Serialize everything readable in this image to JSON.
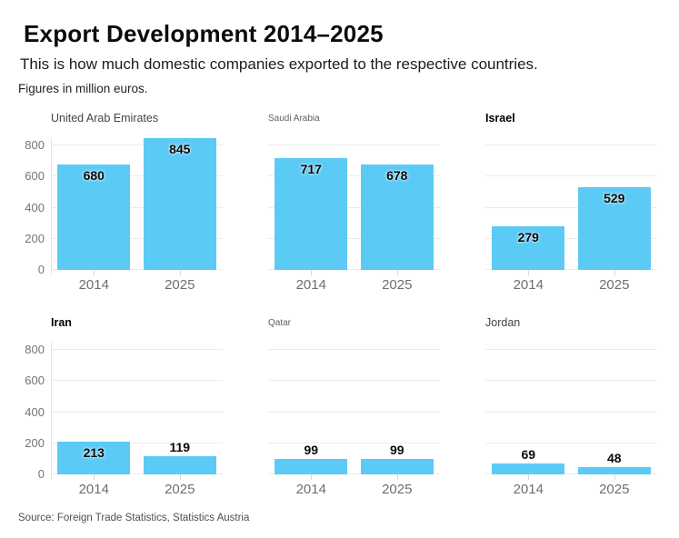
{
  "header": {
    "title": "Export Development 2014–2025",
    "subtitle": "This is how much domestic companies exported to the respective countries.",
    "note": "Figures in million euros."
  },
  "footer": {
    "source": "Source: Foreign Trade Statistics, Statistics Austria"
  },
  "chart_data": {
    "type": "bar",
    "layout": "small-multiples-2x3",
    "categories": [
      "2014",
      "2025"
    ],
    "unit": "million euros",
    "ylim": [
      0,
      800
    ],
    "yticks": [
      0,
      200,
      400,
      600,
      800
    ],
    "grid": "horizontal",
    "bar_color": "#5BCBF5",
    "charts": [
      {
        "title": "United Arab Emirates",
        "values": [
          680,
          845
        ],
        "title_style": "regular"
      },
      {
        "title": "Saudi Arabia",
        "values": [
          717,
          678
        ],
        "title_style": "small"
      },
      {
        "title": "Israel",
        "values": [
          279,
          529
        ],
        "title_style": "bold"
      },
      {
        "title": "Iran",
        "values": [
          213,
          119
        ],
        "title_style": "bold"
      },
      {
        "title": "Qatar",
        "values": [
          99,
          99
        ],
        "title_style": "small"
      },
      {
        "title": "Jordan",
        "values": [
          69,
          48
        ],
        "title_style": "regular"
      }
    ]
  }
}
